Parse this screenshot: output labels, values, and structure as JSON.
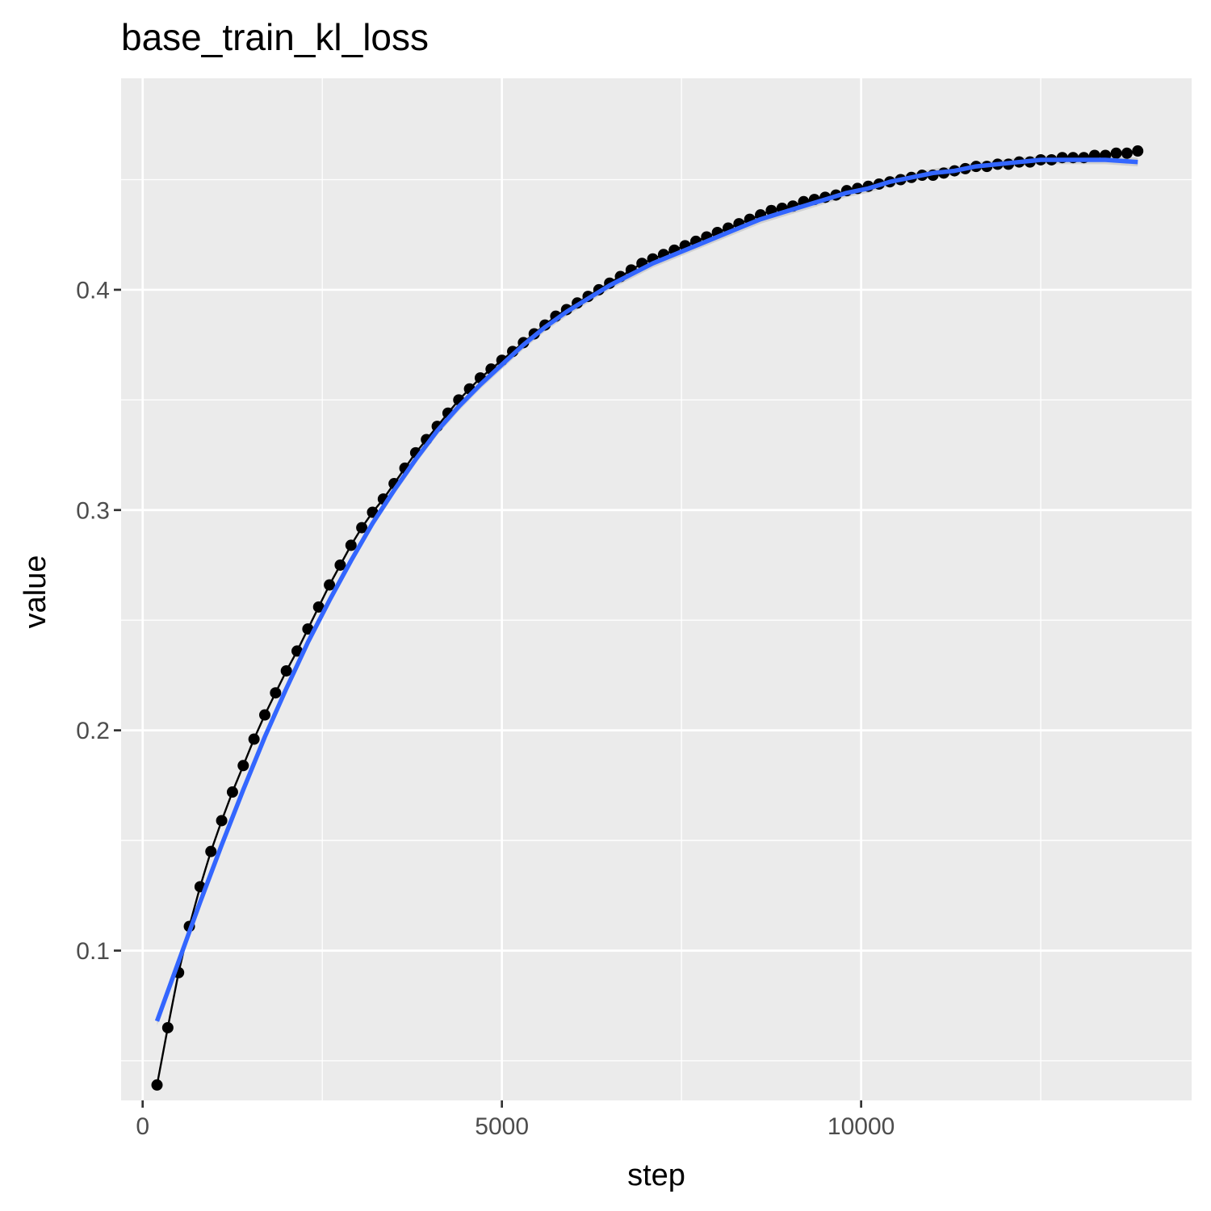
{
  "chart_data": {
    "type": "line",
    "title": "base_train_kl_loss",
    "xlabel": "step",
    "ylabel": "value",
    "xlim": [
      -300,
      14600
    ],
    "ylim": [
      0.032,
      0.496
    ],
    "x_ticks": [
      0,
      5000,
      10000
    ],
    "y_ticks": [
      0.1,
      0.2,
      0.3,
      0.4
    ],
    "x_tick_labels": [
      "0",
      "5000",
      "10000"
    ],
    "y_tick_labels": [
      "0.1",
      "0.2",
      "0.3",
      "0.4"
    ],
    "grid": true,
    "legend": "none",
    "colors": {
      "panel": "#ebebeb",
      "grid": "#ffffff",
      "points": "#000000",
      "smooth": "#3366ff",
      "ribbon": "#bfbfbf"
    },
    "series": [
      {
        "kind": "points-line",
        "x": [
          200,
          350,
          500,
          650,
          800,
          950,
          1100,
          1250,
          1400,
          1550,
          1700,
          1850,
          2000,
          2150,
          2300,
          2450,
          2600,
          2750,
          2900,
          3050,
          3200,
          3350,
          3500,
          3650,
          3800,
          3950,
          4100,
          4250,
          4400,
          4550,
          4700,
          4850,
          5000,
          5150,
          5300,
          5450,
          5600,
          5750,
          5900,
          6050,
          6200,
          6350,
          6500,
          6650,
          6800,
          6950,
          7100,
          7250,
          7400,
          7550,
          7700,
          7850,
          8000,
          8150,
          8300,
          8450,
          8600,
          8750,
          8900,
          9050,
          9200,
          9350,
          9500,
          9650,
          9800,
          9950,
          10100,
          10250,
          10400,
          10550,
          10700,
          10850,
          11000,
          11150,
          11300,
          11450,
          11600,
          11750,
          11900,
          12050,
          12200,
          12350,
          12500,
          12650,
          12800,
          12950,
          13100,
          13250,
          13400,
          13550,
          13700,
          13850
        ],
        "y": [
          0.039,
          0.065,
          0.09,
          0.111,
          0.129,
          0.145,
          0.159,
          0.172,
          0.184,
          0.196,
          0.207,
          0.217,
          0.227,
          0.236,
          0.246,
          0.256,
          0.266,
          0.275,
          0.284,
          0.292,
          0.299,
          0.305,
          0.312,
          0.319,
          0.326,
          0.332,
          0.338,
          0.344,
          0.35,
          0.355,
          0.36,
          0.364,
          0.368,
          0.372,
          0.376,
          0.38,
          0.384,
          0.388,
          0.391,
          0.394,
          0.397,
          0.4,
          0.403,
          0.406,
          0.409,
          0.412,
          0.414,
          0.416,
          0.418,
          0.42,
          0.422,
          0.424,
          0.426,
          0.428,
          0.43,
          0.432,
          0.434,
          0.436,
          0.437,
          0.438,
          0.44,
          0.441,
          0.442,
          0.443,
          0.445,
          0.446,
          0.447,
          0.448,
          0.449,
          0.45,
          0.451,
          0.452,
          0.452,
          0.453,
          0.454,
          0.455,
          0.456,
          0.456,
          0.457,
          0.457,
          0.458,
          0.458,
          0.459,
          0.459,
          0.46,
          0.46,
          0.46,
          0.461,
          0.461,
          0.462,
          0.462,
          0.463
        ]
      },
      {
        "kind": "smooth",
        "x": [
          200,
          500,
          800,
          1100,
          1400,
          1700,
          2000,
          2300,
          2600,
          2900,
          3200,
          3500,
          3800,
          4100,
          4400,
          4700,
          5000,
          5300,
          5600,
          5900,
          6200,
          6500,
          6800,
          7100,
          7400,
          7700,
          8000,
          8300,
          8600,
          8900,
          9200,
          9500,
          9800,
          10100,
          10400,
          10700,
          11000,
          11300,
          11600,
          11900,
          12200,
          12500,
          12800,
          13100,
          13400,
          13850
        ],
        "y": [
          0.068,
          0.095,
          0.122,
          0.148,
          0.173,
          0.197,
          0.219,
          0.24,
          0.259,
          0.277,
          0.294,
          0.309,
          0.323,
          0.336,
          0.347,
          0.357,
          0.366,
          0.375,
          0.383,
          0.39,
          0.396,
          0.402,
          0.407,
          0.412,
          0.416,
          0.42,
          0.424,
          0.428,
          0.432,
          0.435,
          0.438,
          0.441,
          0.444,
          0.446,
          0.449,
          0.451,
          0.453,
          0.454,
          0.456,
          0.457,
          0.458,
          0.459,
          0.459,
          0.459,
          0.459,
          0.458
        ]
      }
    ]
  }
}
